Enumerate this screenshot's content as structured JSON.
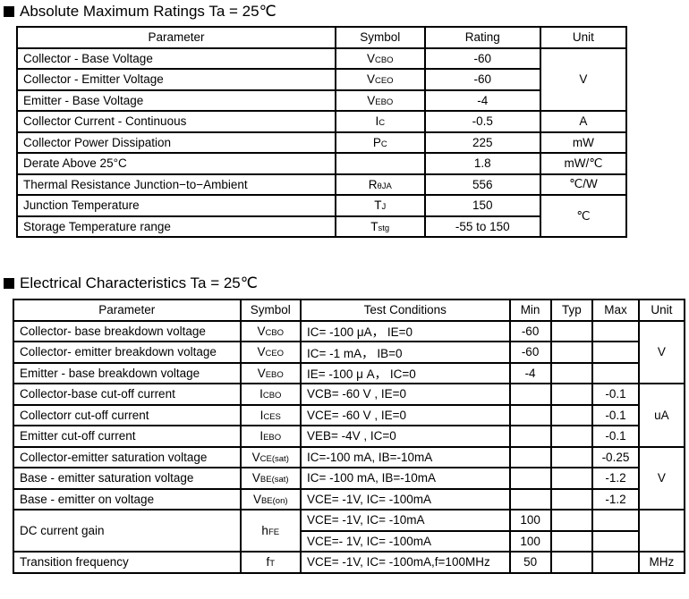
{
  "section1": {
    "title": "Absolute Maximum Ratings Ta = 25℃",
    "headers": [
      "Parameter",
      "Symbol",
      "Rating",
      "Unit"
    ],
    "rows": [
      {
        "parameter": "Collector - Base Voltage",
        "symbol": {
          "main": "V",
          "sub": "CBO"
        },
        "rating": "-60",
        "unit": "V",
        "unit_span": 3
      },
      {
        "parameter": "Collector - Emitter Voltage",
        "symbol": {
          "main": "V",
          "sub": "CEO"
        },
        "rating": "-60"
      },
      {
        "parameter": "Emitter - Base Voltage",
        "symbol": {
          "main": "V",
          "sub": "EBO"
        },
        "rating": "-4"
      },
      {
        "parameter": "Collector Current  - Continuous",
        "symbol": {
          "main": "I",
          "sub": "C"
        },
        "rating": "-0.5",
        "unit": "A",
        "unit_span": 1
      },
      {
        "parameter": "Collector Power Dissipation",
        "symbol": {
          "main": "P",
          "sub": "C"
        },
        "rating": "225",
        "unit": "mW",
        "unit_span": 1
      },
      {
        "parameter": "Derate Above 25°C",
        "symbol": {
          "main": "",
          "sub": ""
        },
        "rating": "1.8",
        "unit": "mW/℃",
        "unit_span": 1
      },
      {
        "parameter": "Thermal Resistance Junction−to−Ambient",
        "symbol": {
          "main": "R",
          "sub": "θJA"
        },
        "rating": "556",
        "unit": "℃/W",
        "unit_span": 1
      },
      {
        "parameter": "Junction Temperature",
        "symbol": {
          "main": "T",
          "sub": "J"
        },
        "rating": "150",
        "unit": "℃",
        "unit_span": 2
      },
      {
        "parameter": "Storage Temperature range",
        "symbol": {
          "main": "T",
          "sub": "stg"
        },
        "rating": "-55 to 150"
      }
    ]
  },
  "section2": {
    "title": "Electrical Characteristics Ta = 25℃",
    "headers": [
      "Parameter",
      "Symbol",
      "Test Conditions",
      "Min",
      "Typ",
      "Max",
      "Unit"
    ],
    "rows": [
      {
        "parameter": "Collector- base breakdown voltage",
        "symbol": {
          "main": "V",
          "sub": "CBO"
        },
        "conditions": "IC= -100 μA， IE=0",
        "min": "-60",
        "typ": "",
        "max": "",
        "unit": "V",
        "unit_span": 3
      },
      {
        "parameter": "Collector- emitter breakdown voltage",
        "symbol": {
          "main": "V",
          "sub": "CEO"
        },
        "conditions": "IC= -1 mA， IB=0",
        "min": "-60",
        "typ": "",
        "max": ""
      },
      {
        "parameter": "Emitter - base breakdown voltage",
        "symbol": {
          "main": "V",
          "sub": "EBO"
        },
        "conditions": "IE= -100 μ A， IC=0",
        "min": "-4",
        "typ": "",
        "max": ""
      },
      {
        "parameter": "Collector-base cut-off current",
        "symbol": {
          "main": "I",
          "sub": "CBO"
        },
        "conditions": "VCB= -60 V , IE=0",
        "min": "",
        "typ": "",
        "max": "-0.1",
        "unit": "uA",
        "unit_span": 3
      },
      {
        "parameter": "Collectorr cut-off current",
        "symbol": {
          "main": "I",
          "sub": "CES"
        },
        "conditions": "VCE= -60 V , IE=0",
        "min": "",
        "typ": "",
        "max": "-0.1"
      },
      {
        "parameter": "Emitter cut-off current",
        "symbol": {
          "main": "I",
          "sub": "EBO"
        },
        "conditions": "VEB= -4V , IC=0",
        "min": "",
        "typ": "",
        "max": "-0.1"
      },
      {
        "parameter": "Collector-emitter saturation voltage",
        "symbol": {
          "main": "V",
          "sub": "CE(sat)"
        },
        "conditions": "IC=-100 mA, IB=-10mA",
        "min": "",
        "typ": "",
        "max": "-0.25",
        "unit": "V",
        "unit_span": 3
      },
      {
        "parameter": "Base - emitter saturation voltage",
        "symbol": {
          "main": "V",
          "sub": "BE(sat)"
        },
        "conditions": "IC= -100 mA, IB=-10mA",
        "min": "",
        "typ": "",
        "max": "-1.2"
      },
      {
        "parameter": "Base - emitter on voltage",
        "symbol": {
          "main": "V",
          "sub": "BE(on)"
        },
        "conditions": "VCE= -1V, IC= -100mA",
        "min": "",
        "typ": "",
        "max": "-1.2"
      },
      {
        "parameter": "DC current gain",
        "symbol": {
          "main": "h",
          "sub": "FE"
        },
        "conditions": "VCE= -1V, IC= -10mA",
        "min": "100",
        "typ": "",
        "max": "",
        "unit": "",
        "unit_span": 2,
        "param_span": 2
      },
      {
        "conditions": "VCE=- 1V, IC= -100mA",
        "min": "100",
        "typ": "",
        "max": "",
        "continued": true
      },
      {
        "parameter": "Transition frequency",
        "symbol": {
          "main": "f",
          "sub": "T"
        },
        "conditions": "VCE= -1V, IC= -100mA,f=100MHz",
        "min": "50",
        "typ": "",
        "max": "",
        "unit": "MHz",
        "unit_span": 1
      }
    ]
  }
}
